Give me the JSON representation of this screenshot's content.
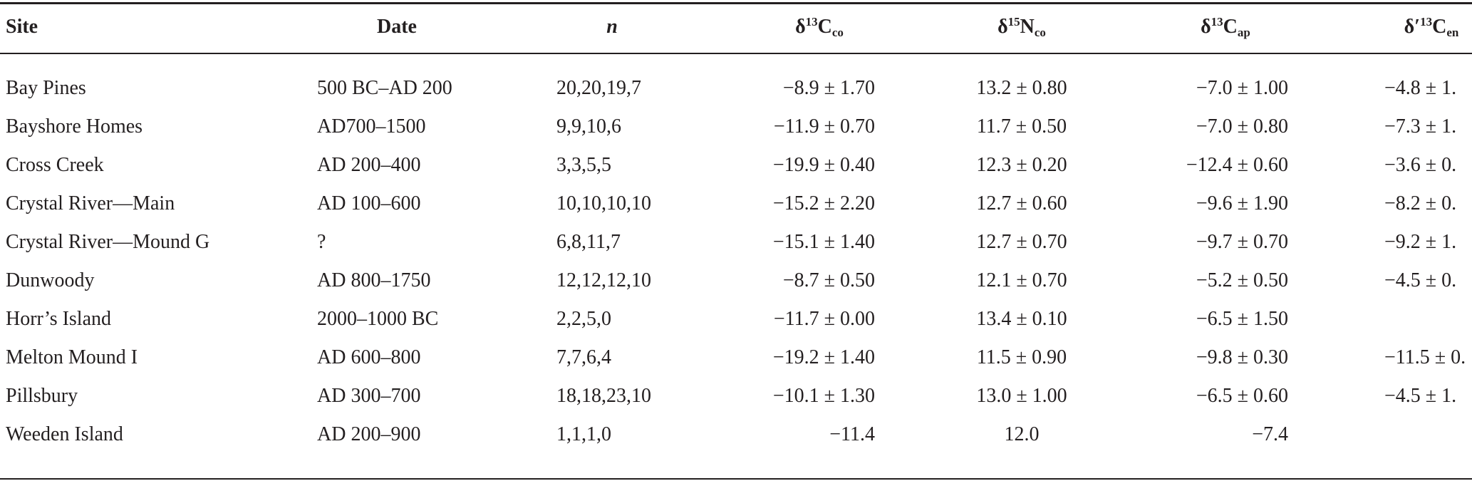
{
  "table": {
    "header": [
      {
        "text": "Site"
      },
      {
        "text": "Date"
      },
      {
        "text": "n"
      },
      {
        "symbol": "δ",
        "sup": "13",
        "element": "C",
        "sub": "co"
      },
      {
        "symbol": "δ",
        "sup": "15",
        "element": "N",
        "sub": "co"
      },
      {
        "symbol": "δ",
        "sup": "13",
        "element": "C",
        "sub": "ap"
      },
      {
        "symbol": "δ′",
        "sup": "13",
        "element": "C",
        "sub": "en"
      }
    ],
    "rows": [
      [
        "Bay Pines",
        "500 BC–AD 200",
        "20,20,19,7",
        "−8.9 ± 1.70",
        "13.2 ± 0.80",
        "−7.0 ± 1.00",
        "−4.8 ± 1."
      ],
      [
        "Bayshore Homes",
        "AD700–1500",
        "9,9,10,6",
        "−11.9 ± 0.70",
        "11.7 ± 0.50",
        "−7.0 ± 0.80",
        "−7.3 ± 1."
      ],
      [
        "Cross Creek",
        "AD 200–400",
        "3,3,5,5",
        "−19.9 ± 0.40",
        "12.3 ± 0.20",
        "−12.4 ± 0.60",
        "−3.6 ± 0."
      ],
      [
        "Crystal River—Main",
        "AD 100–600",
        "10,10,10,10",
        "−15.2 ± 2.20",
        "12.7 ± 0.60",
        "−9.6 ± 1.90",
        "−8.2 ± 0."
      ],
      [
        "Crystal River—Mound G",
        "?",
        "6,8,11,7",
        "−15.1 ± 1.40",
        "12.7 ± 0.70",
        "−9.7 ± 0.70",
        "−9.2 ± 1."
      ],
      [
        "Dunwoody",
        "AD 800–1750",
        "12,12,12,10",
        "−8.7 ± 0.50",
        "12.1 ± 0.70",
        "−5.2 ± 0.50",
        "−4.5 ± 0."
      ],
      [
        "Horr’s Island",
        "2000–1000 BC",
        "2,2,5,0",
        "−11.7 ± 0.00",
        "13.4 ± 0.10",
        "−6.5 ± 1.50",
        null
      ],
      [
        "Melton Mound I",
        "AD 600–800",
        "7,7,6,4",
        "−19.2 ± 1.40",
        "11.5 ± 0.90",
        "−9.8 ± 0.30",
        "−11.5 ± 0."
      ],
      [
        "Pillsbury",
        "AD 300–700",
        "18,18,23,10",
        "−10.1 ± 1.30",
        "13.0 ± 1.00",
        "−6.5 ± 0.60",
        "−4.5 ± 1."
      ],
      [
        "Weeden Island",
        "AD 200–900",
        "1,1,1,0",
        "−11.4",
        "12.0",
        "−7.4",
        null
      ]
    ]
  }
}
